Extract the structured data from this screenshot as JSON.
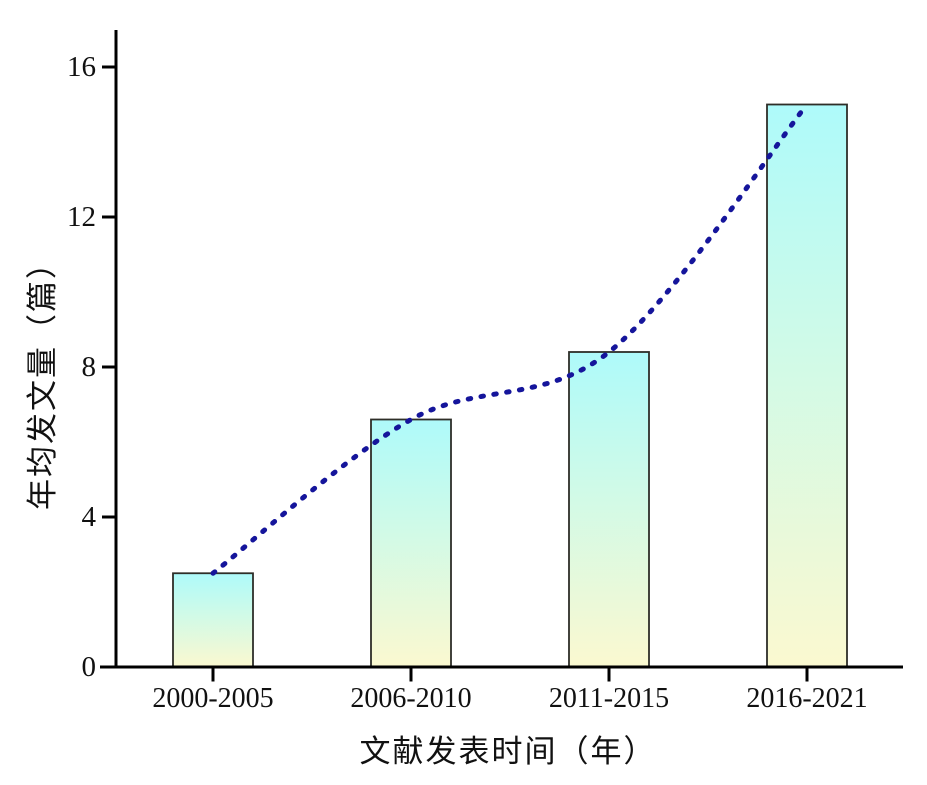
{
  "chart_data": {
    "type": "bar",
    "title": "",
    "categories": [
      "2000-2005",
      "2006-2010",
      "2011-2015",
      "2016-2021"
    ],
    "values": [
      2.5,
      6.6,
      8.4,
      15.0
    ],
    "trend_line": {
      "type": "dotted",
      "values": [
        2.5,
        6.6,
        8.4,
        15.0
      ],
      "color": "#15159b"
    },
    "xlabel": "文献发表时间（年）",
    "ylabel": "年均发文量（篇）",
    "yticks": [
      0,
      4,
      8,
      12,
      16
    ],
    "ylim": [
      0,
      17
    ],
    "grid": false,
    "legend": "none",
    "colors": {
      "bar_gradient_top": "#aefafa",
      "bar_gradient_bottom": "#fbf9d0",
      "bar_border": "#2e2e28",
      "axis": "#000000",
      "text": "#111111"
    }
  }
}
